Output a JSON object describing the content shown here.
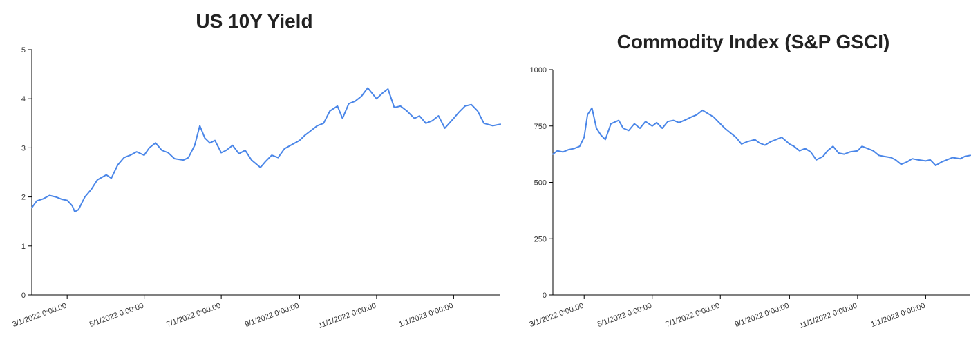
{
  "chart_data": [
    {
      "type": "line",
      "title": "US 10Y Yield",
      "xlabel": "",
      "ylabel": "",
      "ylim": [
        0,
        5
      ],
      "y_ticks": [
        "0",
        "1",
        "2",
        "3",
        "4",
        "5"
      ],
      "x_ticks": [
        "3/1/2022 0:00:00",
        "5/1/2022 0:00:00",
        "7/1/2022 0:00:00",
        "9/1/2022 0:00:00",
        "11/1/2022 0:00:00",
        "1/1/2023 0:00:00"
      ],
      "x_range": [
        "2022-02-01",
        "2023-02-07"
      ],
      "line_color": "#4a86e8",
      "grid": false,
      "series": [
        {
          "x": [
            "2022-02-01",
            "2022-02-05",
            "2022-02-10",
            "2022-02-15",
            "2022-02-20",
            "2022-02-25",
            "2022-03-01",
            "2022-03-05",
            "2022-03-07",
            "2022-03-10",
            "2022-03-15",
            "2022-03-20",
            "2022-03-25",
            "2022-04-01",
            "2022-04-05",
            "2022-04-10",
            "2022-04-15",
            "2022-04-20",
            "2022-04-25",
            "2022-05-01",
            "2022-05-05",
            "2022-05-10",
            "2022-05-15",
            "2022-05-20",
            "2022-05-25",
            "2022-06-01",
            "2022-06-05",
            "2022-06-10",
            "2022-06-14",
            "2022-06-18",
            "2022-06-22",
            "2022-06-26",
            "2022-07-01",
            "2022-07-05",
            "2022-07-10",
            "2022-07-15",
            "2022-07-20",
            "2022-07-25",
            "2022-08-01",
            "2022-08-05",
            "2022-08-10",
            "2022-08-15",
            "2022-08-20",
            "2022-08-25",
            "2022-09-01",
            "2022-09-05",
            "2022-09-10",
            "2022-09-15",
            "2022-09-20",
            "2022-09-25",
            "2022-10-01",
            "2022-10-05",
            "2022-10-10",
            "2022-10-15",
            "2022-10-20",
            "2022-10-25",
            "2022-11-01",
            "2022-11-05",
            "2022-11-10",
            "2022-11-15",
            "2022-11-20",
            "2022-11-25",
            "2022-12-01",
            "2022-12-05",
            "2022-12-10",
            "2022-12-15",
            "2022-12-20",
            "2022-12-25",
            "2023-01-01",
            "2023-01-05",
            "2023-01-10",
            "2023-01-15",
            "2023-01-20",
            "2023-01-25",
            "2023-02-01",
            "2023-02-07"
          ],
          "values": [
            1.78,
            1.92,
            1.96,
            2.03,
            2.0,
            1.95,
            1.93,
            1.82,
            1.7,
            1.74,
            2.0,
            2.15,
            2.35,
            2.45,
            2.38,
            2.65,
            2.8,
            2.85,
            2.92,
            2.85,
            3.0,
            3.1,
            2.95,
            2.9,
            2.78,
            2.75,
            2.8,
            3.05,
            3.45,
            3.2,
            3.1,
            3.15,
            2.9,
            2.95,
            3.05,
            2.88,
            2.95,
            2.75,
            2.6,
            2.72,
            2.85,
            2.8,
            2.98,
            3.05,
            3.15,
            3.25,
            3.35,
            3.45,
            3.5,
            3.75,
            3.85,
            3.6,
            3.9,
            3.95,
            4.05,
            4.22,
            4.0,
            4.1,
            4.2,
            3.82,
            3.85,
            3.75,
            3.6,
            3.65,
            3.5,
            3.55,
            3.65,
            3.4,
            3.6,
            3.72,
            3.85,
            3.88,
            3.75,
            3.5,
            3.45,
            3.48
          ]
        }
      ]
    },
    {
      "type": "line",
      "title": "Commodity Index (S&P GSCI)",
      "xlabel": "",
      "ylabel": "",
      "ylim": [
        0,
        1000
      ],
      "y_ticks": [
        "0",
        "250",
        "500",
        "750",
        "1000"
      ],
      "x_ticks": [
        "3/1/2022 0:00:00",
        "5/1/2022 0:00:00",
        "7/1/2022 0:00:00",
        "9/1/2022 0:00:00",
        "11/1/2022 0:00:00",
        "1/1/2023 0:00:00"
      ],
      "x_range": [
        "2022-02-01",
        "2023-02-10"
      ],
      "line_color": "#4a86e8",
      "grid": false,
      "series": [
        {
          "x": [
            "2022-02-01",
            "2022-02-05",
            "2022-02-10",
            "2022-02-15",
            "2022-02-20",
            "2022-02-25",
            "2022-03-01",
            "2022-03-04",
            "2022-03-08",
            "2022-03-12",
            "2022-03-16",
            "2022-03-20",
            "2022-03-25",
            "2022-04-01",
            "2022-04-05",
            "2022-04-10",
            "2022-04-15",
            "2022-04-20",
            "2022-04-25",
            "2022-05-01",
            "2022-05-05",
            "2022-05-10",
            "2022-05-15",
            "2022-05-20",
            "2022-05-25",
            "2022-06-01",
            "2022-06-05",
            "2022-06-10",
            "2022-06-15",
            "2022-06-20",
            "2022-06-25",
            "2022-07-01",
            "2022-07-05",
            "2022-07-10",
            "2022-07-15",
            "2022-07-20",
            "2022-07-25",
            "2022-08-01",
            "2022-08-05",
            "2022-08-10",
            "2022-08-15",
            "2022-08-20",
            "2022-08-25",
            "2022-09-01",
            "2022-09-05",
            "2022-09-10",
            "2022-09-15",
            "2022-09-20",
            "2022-09-25",
            "2022-10-01",
            "2022-10-05",
            "2022-10-10",
            "2022-10-15",
            "2022-10-20",
            "2022-10-25",
            "2022-11-01",
            "2022-11-05",
            "2022-11-10",
            "2022-11-15",
            "2022-11-20",
            "2022-11-25",
            "2022-12-01",
            "2022-12-05",
            "2022-12-10",
            "2022-12-15",
            "2022-12-20",
            "2022-12-25",
            "2023-01-01",
            "2023-01-05",
            "2023-01-10",
            "2023-01-15",
            "2023-01-20",
            "2023-01-25",
            "2023-02-01",
            "2023-02-05",
            "2023-02-10"
          ],
          "values": [
            625,
            640,
            635,
            645,
            650,
            660,
            700,
            800,
            830,
            740,
            710,
            690,
            760,
            775,
            740,
            730,
            760,
            740,
            770,
            750,
            765,
            740,
            770,
            775,
            765,
            780,
            790,
            800,
            820,
            805,
            790,
            760,
            740,
            720,
            700,
            670,
            680,
            690,
            675,
            665,
            680,
            690,
            700,
            670,
            660,
            640,
            650,
            635,
            600,
            615,
            640,
            660,
            630,
            625,
            635,
            640,
            660,
            650,
            640,
            620,
            615,
            610,
            600,
            580,
            590,
            605,
            600,
            595,
            600,
            575,
            590,
            600,
            610,
            605,
            615,
            620
          ]
        }
      ]
    }
  ]
}
